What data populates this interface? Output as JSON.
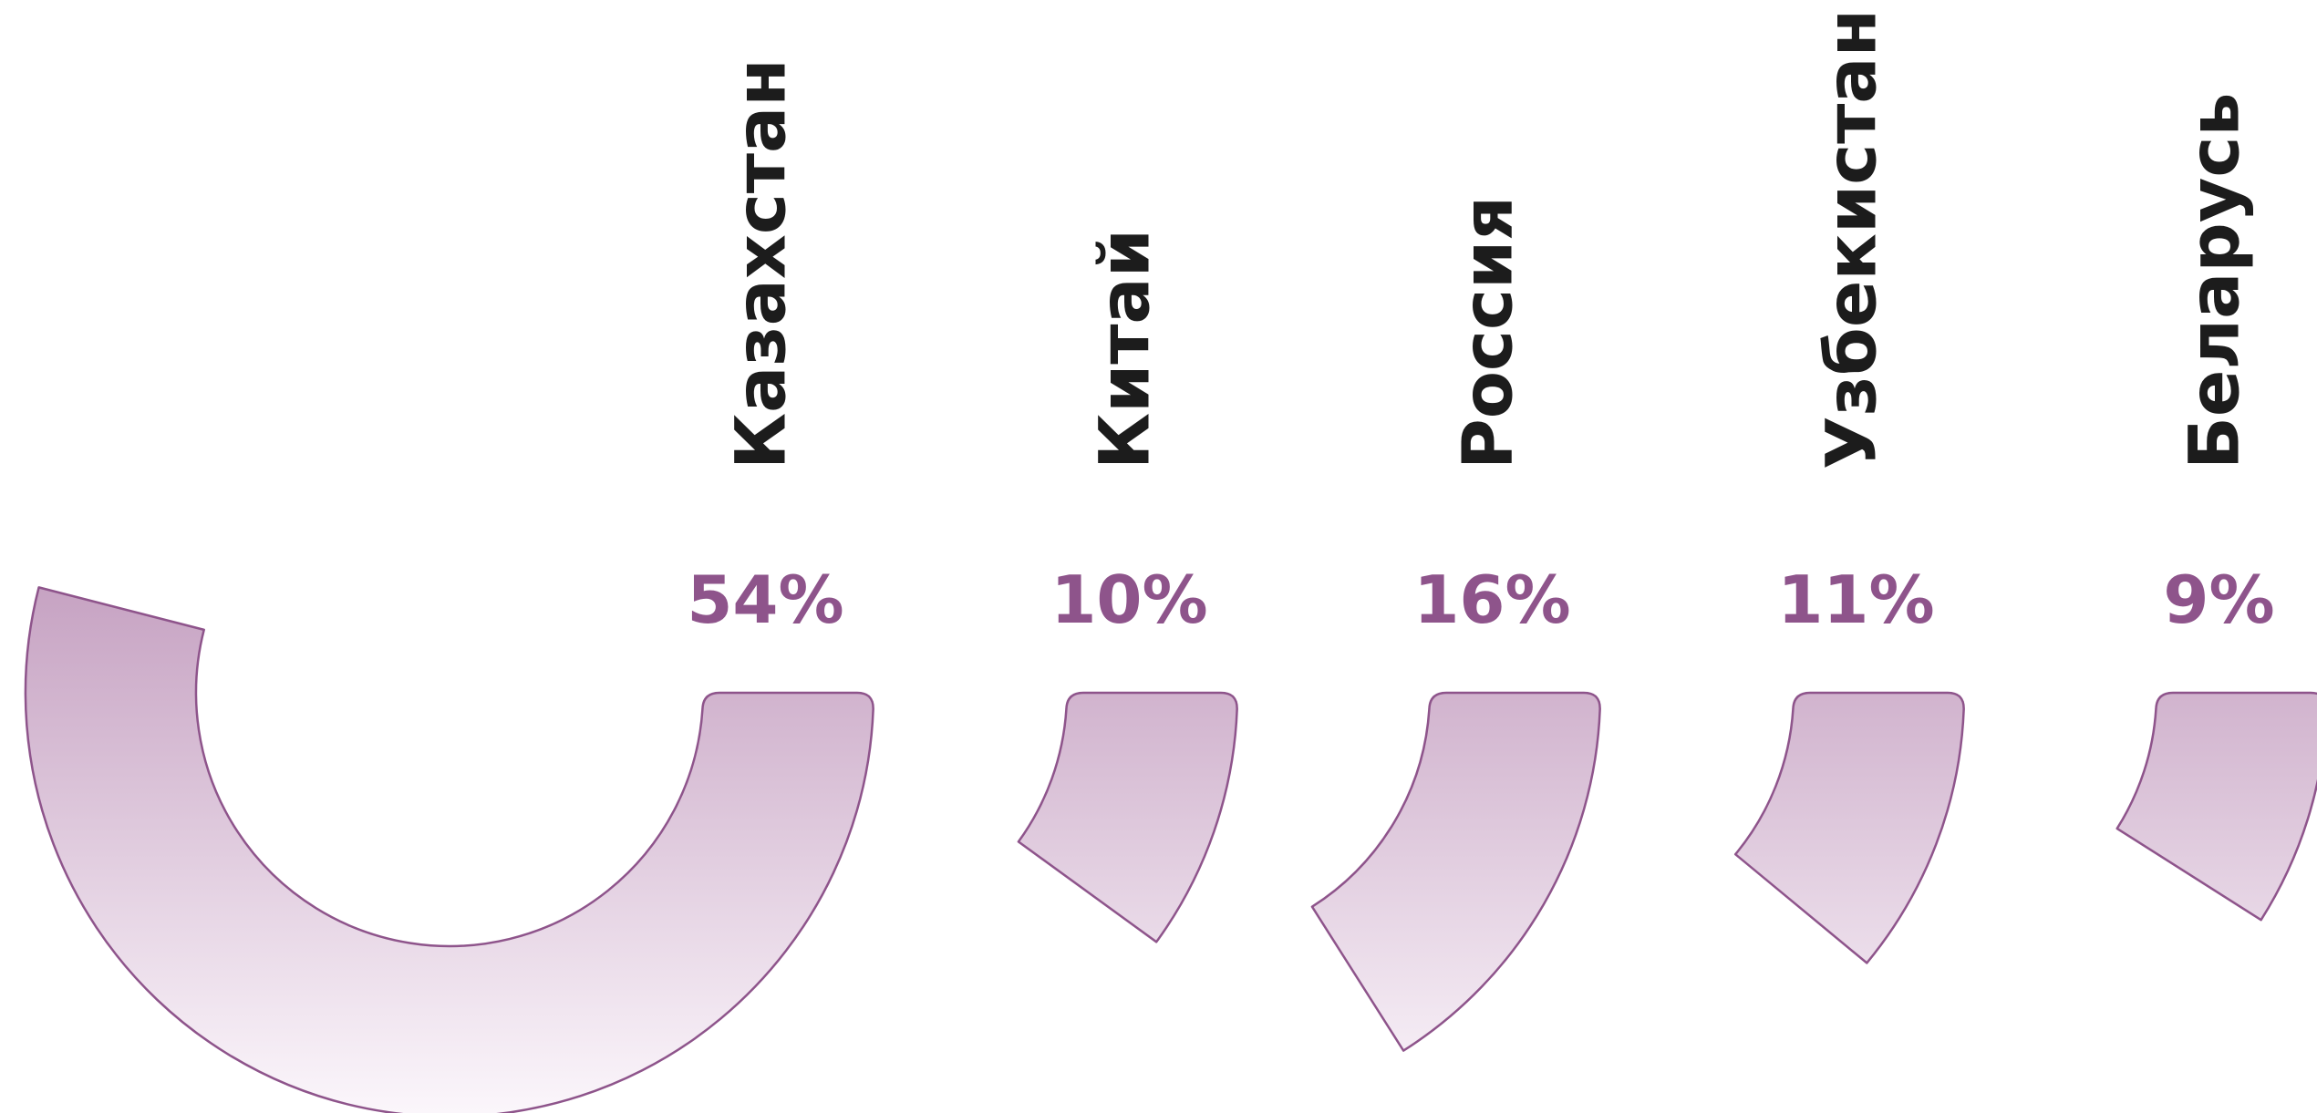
{
  "chart_data": {
    "type": "radial-bar",
    "title": "",
    "categories": [
      "Казахстан",
      "Китай",
      "Россия",
      "Узбекистан",
      "Беларусь"
    ],
    "values": [
      54,
      10,
      16,
      11,
      9
    ],
    "value_labels": [
      "54%",
      "10%",
      "16%",
      "11%",
      "9%"
    ],
    "unit": "%",
    "colors": {
      "stroke": "#8e548b",
      "gradient_top": "#c6a2c2",
      "gradient_bottom": "#fbf6fb",
      "label_text": "#1c1c1c",
      "value_text": "#8e548b"
    }
  }
}
